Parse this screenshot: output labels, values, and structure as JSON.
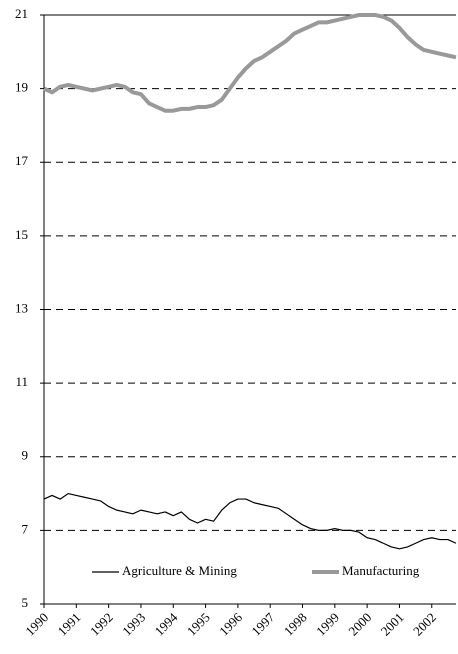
{
  "chart_data": {
    "type": "line",
    "categories": [
      "1990",
      null,
      null,
      null,
      "1991",
      null,
      null,
      null,
      "1992",
      null,
      null,
      null,
      "1993",
      null,
      null,
      null,
      "1994",
      null,
      null,
      null,
      "1995",
      null,
      null,
      null,
      "1996",
      null,
      null,
      null,
      "1997",
      null,
      null,
      null,
      "1998",
      null,
      null,
      null,
      "1999",
      null,
      null,
      null,
      "2000",
      null,
      null,
      null,
      "2001",
      null,
      null,
      null,
      "2002",
      null,
      null,
      null
    ],
    "series": [
      {
        "name": "Agriculture & Mining",
        "color": "#000000",
        "values": [
          7.85,
          7.95,
          7.85,
          8.0,
          7.95,
          7.9,
          7.85,
          7.8,
          7.65,
          7.55,
          7.5,
          7.45,
          7.55,
          7.5,
          7.45,
          7.5,
          7.4,
          7.5,
          7.3,
          7.2,
          7.3,
          7.25,
          7.55,
          7.75,
          7.85,
          7.85,
          7.75,
          7.7,
          7.65,
          7.6,
          7.45,
          7.3,
          7.15,
          7.05,
          7.0,
          7.0,
          7.05,
          7.0,
          7.0,
          6.95,
          6.8,
          6.75,
          6.65,
          6.55,
          6.5,
          6.55,
          6.65,
          6.75,
          6.8,
          6.75,
          6.75,
          6.65
        ]
      },
      {
        "name": "Manufacturing",
        "color": "#999999",
        "values": [
          19.0,
          18.9,
          19.05,
          19.1,
          19.05,
          19.0,
          18.95,
          19.0,
          19.05,
          19.1,
          19.05,
          18.9,
          18.85,
          18.6,
          18.5,
          18.4,
          18.4,
          18.45,
          18.45,
          18.5,
          18.5,
          18.55,
          18.7,
          19.0,
          19.3,
          19.55,
          19.75,
          19.85,
          20.0,
          20.15,
          20.3,
          20.5,
          20.6,
          20.7,
          20.8,
          20.8,
          20.85,
          20.9,
          20.95,
          21.0,
          21.0,
          21.0,
          20.95,
          20.85,
          20.65,
          20.4,
          20.2,
          20.05,
          20.0,
          19.95,
          19.9,
          19.85
        ]
      }
    ],
    "ylim": [
      5,
      21
    ],
    "yticks": [
      5,
      7,
      9,
      11,
      13,
      15,
      17,
      19,
      21
    ],
    "grid": true,
    "legend": "bottom"
  }
}
